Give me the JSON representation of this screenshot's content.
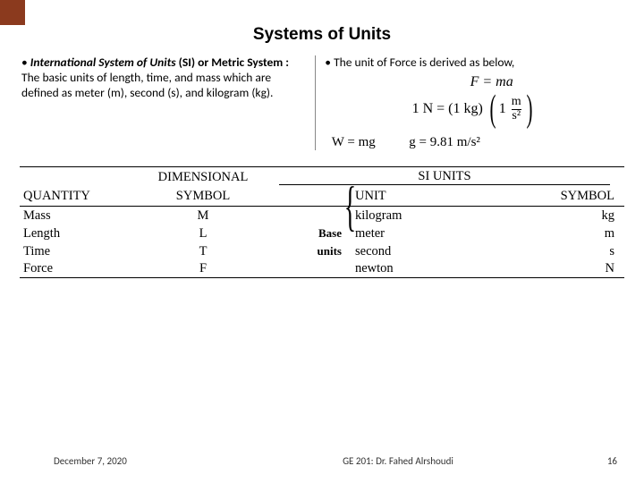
{
  "accent_color": "#8b3a1e",
  "title": "Systems of Units",
  "left_col": {
    "heading_bold_italic": "International System of Units",
    "heading_bold_tail": " (SI) or Metric System :",
    "body": "The basic units of length, time, and mass which are defined as meter (m), second (s), and kilogram (kg)."
  },
  "right_col": {
    "heading": "The unit of Force is derived as below,",
    "formula_Fma": "F = ma",
    "formula_N_lhs": "1 N = (1 kg)",
    "formula_N_num": "m",
    "formula_N_den": "s²",
    "formula_N_trail": "1 ",
    "formula_W": "W = mg",
    "formula_g": "g = 9.81 m/s²"
  },
  "table": {
    "col_headers": {
      "quantity": "QUANTITY",
      "dim1": "DIMENSIONAL",
      "dim2": "SYMBOL",
      "si": "SI UNITS",
      "unit": "UNIT",
      "symbol": "SYMBOL"
    },
    "base_label": "Base units",
    "rows": [
      {
        "q": "Mass",
        "d": "M",
        "u": "kilogram",
        "s": "kg"
      },
      {
        "q": "Length",
        "d": "L",
        "u": "meter",
        "s": "m"
      },
      {
        "q": "Time",
        "d": "T",
        "u": "second",
        "s": "s"
      },
      {
        "q": "Force",
        "d": "F",
        "u": "newton",
        "s": "N"
      }
    ]
  },
  "footer": {
    "date": "December 7, 2020",
    "center": "GE 201: Dr. Fahed Alrshoudi",
    "page": "16"
  }
}
